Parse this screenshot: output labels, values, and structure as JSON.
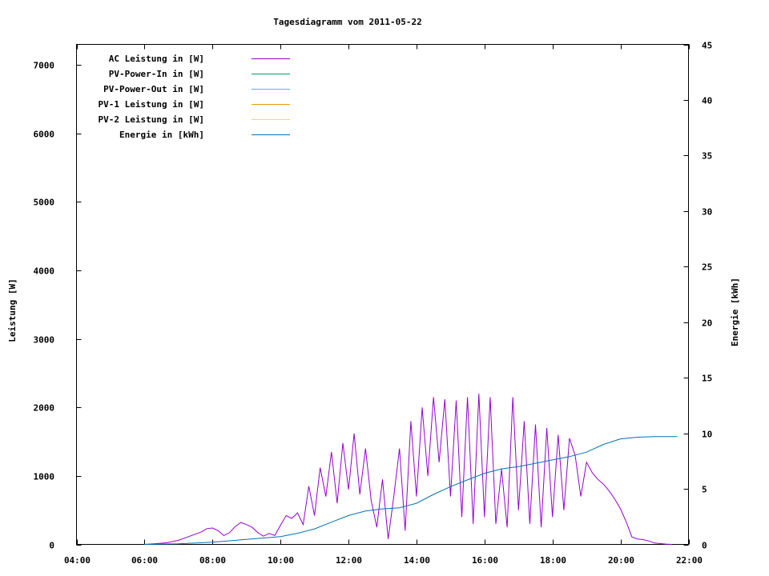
{
  "chart_data": {
    "type": "line",
    "title": "Tagesdiagramm vom 2011-05-22",
    "ylabel": "Leistung [W]",
    "y2label": "Energie [kWh]",
    "xlim": [
      "04:00",
      "22:00"
    ],
    "ylim": [
      0,
      7300
    ],
    "y2lim": [
      0,
      45
    ],
    "x_ticks": [
      "04:00",
      "06:00",
      "08:00",
      "10:00",
      "12:00",
      "14:00",
      "16:00",
      "18:00",
      "20:00",
      "22:00"
    ],
    "y_ticks": [
      0,
      1000,
      2000,
      3000,
      4000,
      5000,
      6000,
      7000
    ],
    "y2_ticks": [
      0,
      5,
      10,
      15,
      20,
      25,
      30,
      35,
      40,
      45
    ],
    "legend_position": "top-left",
    "grid": false,
    "series": [
      {
        "name": "AC Leistung in [W]",
        "color": "#9400d3",
        "axis": "left",
        "points": [
          [
            "06:00",
            0
          ],
          [
            "06:20",
            10
          ],
          [
            "06:40",
            25
          ],
          [
            "07:00",
            60
          ],
          [
            "07:20",
            120
          ],
          [
            "07:40",
            180
          ],
          [
            "07:50",
            230
          ],
          [
            "08:00",
            240
          ],
          [
            "08:10",
            200
          ],
          [
            "08:20",
            130
          ],
          [
            "08:30",
            170
          ],
          [
            "08:40",
            260
          ],
          [
            "08:50",
            320
          ],
          [
            "09:00",
            290
          ],
          [
            "09:10",
            250
          ],
          [
            "09:20",
            170
          ],
          [
            "09:30",
            120
          ],
          [
            "09:40",
            160
          ],
          [
            "09:50",
            130
          ],
          [
            "10:00",
            280
          ],
          [
            "10:10",
            420
          ],
          [
            "10:20",
            380
          ],
          [
            "10:30",
            460
          ],
          [
            "10:40",
            290
          ],
          [
            "10:50",
            850
          ],
          [
            "11:00",
            420
          ],
          [
            "11:10",
            1120
          ],
          [
            "11:20",
            700
          ],
          [
            "11:30",
            1350
          ],
          [
            "11:40",
            600
          ],
          [
            "11:50",
            1480
          ],
          [
            "12:00",
            800
          ],
          [
            "12:10",
            1620
          ],
          [
            "12:20",
            730
          ],
          [
            "12:30",
            1400
          ],
          [
            "12:40",
            640
          ],
          [
            "12:50",
            250
          ],
          [
            "13:00",
            950
          ],
          [
            "13:10",
            80
          ],
          [
            "13:20",
            700
          ],
          [
            "13:30",
            1400
          ],
          [
            "13:40",
            200
          ],
          [
            "13:50",
            1800
          ],
          [
            "14:00",
            700
          ],
          [
            "14:10",
            2000
          ],
          [
            "14:20",
            1000
          ],
          [
            "14:30",
            2150
          ],
          [
            "14:40",
            1200
          ],
          [
            "14:50",
            2120
          ],
          [
            "15:00",
            700
          ],
          [
            "15:10",
            2100
          ],
          [
            "15:20",
            400
          ],
          [
            "15:30",
            2150
          ],
          [
            "15:40",
            300
          ],
          [
            "15:50",
            2200
          ],
          [
            "16:00",
            400
          ],
          [
            "16:10",
            2150
          ],
          [
            "16:20",
            300
          ],
          [
            "16:30",
            1100
          ],
          [
            "16:40",
            250
          ],
          [
            "16:50",
            2150
          ],
          [
            "17:00",
            500
          ],
          [
            "17:10",
            1800
          ],
          [
            "17:20",
            300
          ],
          [
            "17:30",
            1750
          ],
          [
            "17:40",
            250
          ],
          [
            "17:50",
            1700
          ],
          [
            "18:00",
            400
          ],
          [
            "18:10",
            1600
          ],
          [
            "18:20",
            500
          ],
          [
            "18:30",
            1550
          ],
          [
            "18:40",
            1300
          ],
          [
            "18:50",
            700
          ],
          [
            "19:00",
            1200
          ],
          [
            "19:10",
            1050
          ],
          [
            "19:20",
            950
          ],
          [
            "19:30",
            880
          ],
          [
            "19:40",
            780
          ],
          [
            "19:50",
            660
          ],
          [
            "20:00",
            520
          ],
          [
            "20:10",
            330
          ],
          [
            "20:20",
            110
          ],
          [
            "20:30",
            80
          ],
          [
            "20:40",
            70
          ],
          [
            "20:50",
            50
          ],
          [
            "21:00",
            20
          ],
          [
            "21:20",
            5
          ],
          [
            "21:30",
            0
          ]
        ]
      },
      {
        "name": "PV-Power-In in [W]",
        "color": "#009e73",
        "axis": "left",
        "points": []
      },
      {
        "name": "PV-Power-Out in [W]",
        "color": "#56b4e9",
        "axis": "left",
        "points": []
      },
      {
        "name": "PV-1 Leistung in [W]",
        "color": "#e69f00",
        "axis": "left",
        "points": []
      },
      {
        "name": "PV-2 Leistung in [W]",
        "color": "#f0e442",
        "axis": "left",
        "points": []
      },
      {
        "name": "Energie in [kWh]",
        "color": "#0072b2",
        "axis": "right",
        "points": [
          [
            "06:00",
            0
          ],
          [
            "07:00",
            0.05
          ],
          [
            "08:00",
            0.2
          ],
          [
            "09:00",
            0.45
          ],
          [
            "10:00",
            0.7
          ],
          [
            "10:30",
            1.0
          ],
          [
            "11:00",
            1.4
          ],
          [
            "11:30",
            2.0
          ],
          [
            "12:00",
            2.6
          ],
          [
            "12:30",
            3.0
          ],
          [
            "13:00",
            3.2
          ],
          [
            "13:30",
            3.3
          ],
          [
            "14:00",
            3.7
          ],
          [
            "14:30",
            4.5
          ],
          [
            "15:00",
            5.2
          ],
          [
            "15:30",
            5.8
          ],
          [
            "16:00",
            6.4
          ],
          [
            "16:30",
            6.8
          ],
          [
            "17:00",
            7.0
          ],
          [
            "17:30",
            7.3
          ],
          [
            "18:00",
            7.6
          ],
          [
            "18:30",
            7.9
          ],
          [
            "19:00",
            8.3
          ],
          [
            "19:30",
            9.0
          ],
          [
            "20:00",
            9.5
          ],
          [
            "20:30",
            9.65
          ],
          [
            "21:00",
            9.7
          ],
          [
            "21:30",
            9.7
          ],
          [
            "21:40",
            9.7
          ]
        ]
      }
    ]
  }
}
